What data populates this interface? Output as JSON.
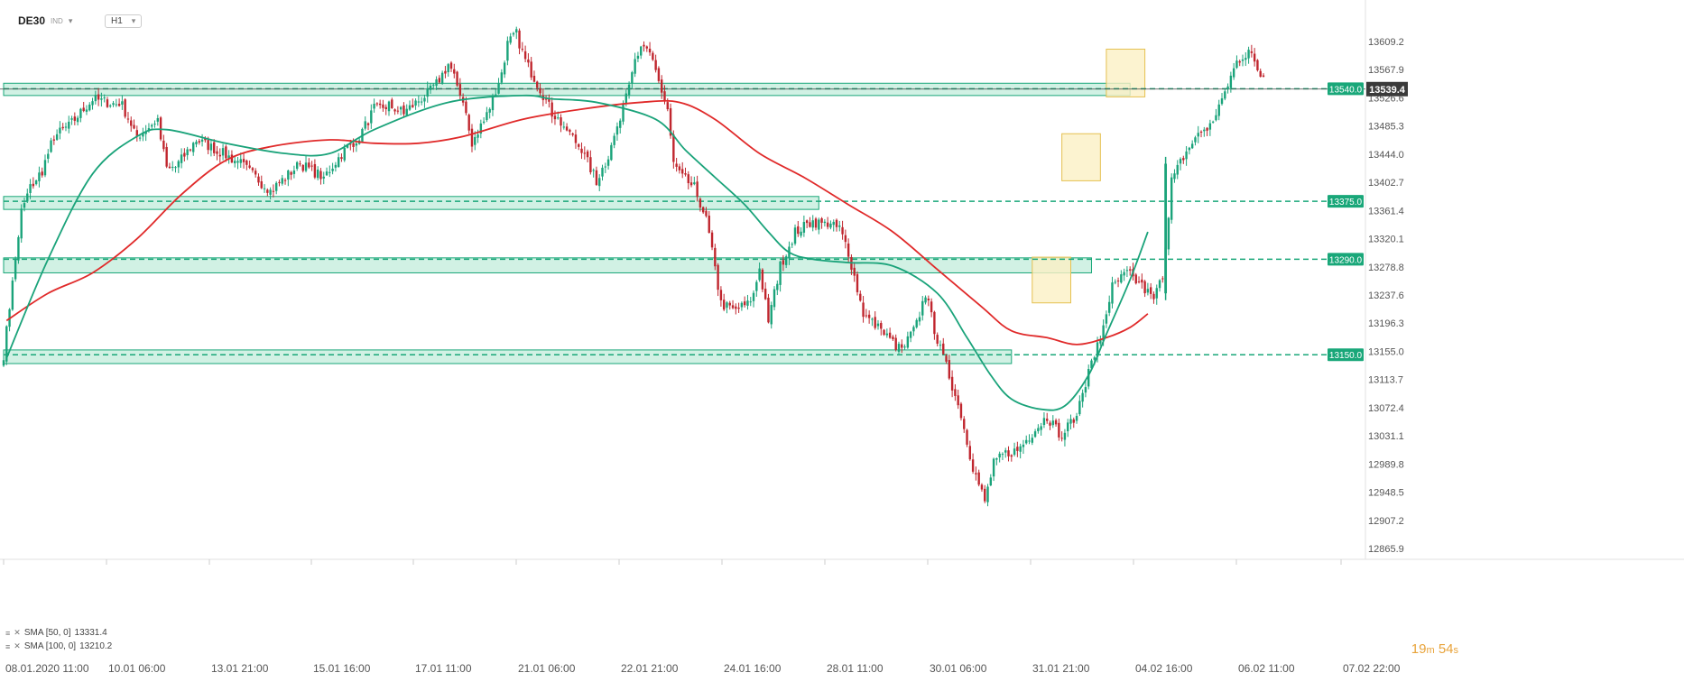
{
  "header": {
    "symbol": "DE30",
    "symbol_sub": "IND",
    "timeframe": "H1"
  },
  "indicators": [
    {
      "label": "SMA [50, 0]",
      "value": "13331.4",
      "color": "#1aa37a"
    },
    {
      "label": "SMA [100, 0]",
      "value": "13210.2",
      "color": "#e02a2a"
    }
  ],
  "timer": {
    "minutes": "19",
    "m_unit": "m",
    "seconds": "54",
    "s_unit": "s"
  },
  "colors": {
    "up": "#1aa37a",
    "down": "#c0262e",
    "zone_fill": "#c9efdf",
    "zone_stroke": "#19a779",
    "box_fill": "#fbf0c4",
    "box_stroke": "#e5c050",
    "sma50": "#1aa37a",
    "sma100": "#e02a2a",
    "price_tag": "#3a3a3a",
    "level_tag": "#19a779"
  },
  "chart_data": {
    "type": "candlestick",
    "instrument": "DE30",
    "timeframe": "H1",
    "y_ticks": [
      13609.2,
      13567.9,
      13526.6,
      13485.3,
      13444.0,
      13402.7,
      13361.4,
      13320.1,
      13278.8,
      13237.6,
      13196.3,
      13155.0,
      13113.7,
      13072.4,
      13031.1,
      12989.8,
      12948.5,
      12907.2,
      12865.9
    ],
    "y_tick_labels": [
      "13609.2",
      "13567.9",
      "13526.6",
      "13485.3",
      "13444.0",
      "13402.7",
      "13361.4",
      "13320.1",
      "13278.8",
      "13237.6",
      "13196.3",
      "13155.0",
      "13113.7",
      "13072.4",
      "13031.1",
      "12989.8",
      "12948.5",
      "12907.2",
      "12865.9"
    ],
    "x_labels": [
      "08.01.2020  11:00",
      "10.01  06:00",
      "13.01  21:00",
      "15.01  16:00",
      "17.01  11:00",
      "21.01  06:00",
      "22.01  21:00",
      "24.01  16:00",
      "28.01  11:00",
      "30.01  06:00",
      "31.01  21:00",
      "04.02  16:00",
      "06.02  11:00",
      "07.02  22:00"
    ],
    "current_price": 13539.4,
    "current_price_label": "13539.4",
    "levels": [
      {
        "value": 13540.0,
        "label": "13540.0"
      },
      {
        "value": 13375.0,
        "label": "13375.0"
      },
      {
        "value": 13290.0,
        "label": "13290.0"
      },
      {
        "value": 13150.0,
        "label": "13150.0"
      }
    ],
    "zones": [
      {
        "bar_start": 0,
        "bar_end": 380,
        "low": 13530,
        "high": 13548
      },
      {
        "bar_start": 0,
        "bar_end": 275,
        "low": 13363,
        "high": 13382
      },
      {
        "bar_start": 0,
        "bar_end": 367,
        "low": 13270,
        "high": 13292
      },
      {
        "bar_start": 0,
        "bar_end": 340,
        "low": 13137,
        "high": 13157
      }
    ],
    "boxes": [
      {
        "bar_start": 347,
        "bar_end": 360,
        "low": 13226,
        "high": 13293
      },
      {
        "bar_start": 357,
        "bar_end": 370,
        "low": 13405,
        "high": 13474
      },
      {
        "bar_start": 372,
        "bar_end": 385,
        "low": 13528,
        "high": 13598
      }
    ],
    "anchors": [
      [
        0,
        13150
      ],
      [
        3,
        13255
      ],
      [
        6,
        13360
      ],
      [
        9,
        13395
      ],
      [
        13,
        13420
      ],
      [
        17,
        13470
      ],
      [
        22,
        13485
      ],
      [
        30,
        13525
      ],
      [
        40,
        13515
      ],
      [
        45,
        13470
      ],
      [
        52,
        13495
      ],
      [
        55,
        13420
      ],
      [
        58,
        13425
      ],
      [
        65,
        13465
      ],
      [
        72,
        13450
      ],
      [
        80,
        13430
      ],
      [
        90,
        13390
      ],
      [
        100,
        13430
      ],
      [
        108,
        13410
      ],
      [
        115,
        13450
      ],
      [
        120,
        13470
      ],
      [
        125,
        13510
      ],
      [
        130,
        13515
      ],
      [
        135,
        13505
      ],
      [
        145,
        13540
      ],
      [
        150,
        13575
      ],
      [
        155,
        13525
      ],
      [
        158,
        13455
      ],
      [
        162,
        13495
      ],
      [
        167,
        13545
      ],
      [
        170,
        13605
      ],
      [
        173,
        13620
      ],
      [
        176,
        13580
      ],
      [
        181,
        13540
      ],
      [
        185,
        13505
      ],
      [
        190,
        13480
      ],
      [
        195,
        13450
      ],
      [
        200,
        13405
      ],
      [
        204,
        13440
      ],
      [
        208,
        13500
      ],
      [
        213,
        13590
      ],
      [
        217,
        13600
      ],
      [
        221,
        13550
      ],
      [
        224,
        13510
      ],
      [
        226,
        13430
      ],
      [
        229,
        13410
      ],
      [
        233,
        13395
      ],
      [
        237,
        13350
      ],
      [
        242,
        13225
      ],
      [
        246,
        13215
      ],
      [
        252,
        13225
      ],
      [
        255,
        13275
      ],
      [
        258,
        13200
      ],
      [
        262,
        13280
      ],
      [
        267,
        13330
      ],
      [
        273,
        13345
      ],
      [
        278,
        13340
      ],
      [
        282,
        13335
      ],
      [
        285,
        13300
      ],
      [
        290,
        13210
      ],
      [
        296,
        13185
      ],
      [
        303,
        13155
      ],
      [
        308,
        13195
      ],
      [
        311,
        13240
      ],
      [
        315,
        13170
      ],
      [
        319,
        13120
      ],
      [
        323,
        13060
      ],
      [
        327,
        12985
      ],
      [
        331,
        12935
      ],
      [
        334,
        12990
      ],
      [
        338,
        13005
      ],
      [
        342,
        13010
      ],
      [
        347,
        13035
      ],
      [
        352,
        13060
      ],
      [
        357,
        13030
      ],
      [
        362,
        13065
      ],
      [
        366,
        13125
      ],
      [
        370,
        13175
      ],
      [
        374,
        13250
      ],
      [
        379,
        13270
      ],
      [
        384,
        13250
      ],
      [
        388,
        13232
      ],
      [
        391,
        13265
      ],
      [
        394,
        13405
      ],
      [
        398,
        13440
      ],
      [
        403,
        13475
      ],
      [
        407,
        13485
      ],
      [
        412,
        13535
      ],
      [
        416,
        13580
      ],
      [
        420,
        13595
      ],
      [
        424,
        13560
      ]
    ],
    "sma50": [
      [
        1,
        13145
      ],
      [
        15,
        13290
      ],
      [
        30,
        13415
      ],
      [
        45,
        13470
      ],
      [
        55,
        13480
      ],
      [
        75,
        13460
      ],
      [
        95,
        13445
      ],
      [
        110,
        13445
      ],
      [
        125,
        13480
      ],
      [
        150,
        13520
      ],
      [
        175,
        13530
      ],
      [
        185,
        13525
      ],
      [
        200,
        13520
      ],
      [
        220,
        13495
      ],
      [
        230,
        13450
      ],
      [
        240,
        13410
      ],
      [
        250,
        13370
      ],
      [
        258,
        13330
      ],
      [
        265,
        13300
      ],
      [
        273,
        13290
      ],
      [
        285,
        13285
      ],
      [
        300,
        13280
      ],
      [
        315,
        13240
      ],
      [
        325,
        13175
      ],
      [
        333,
        13120
      ],
      [
        340,
        13085
      ],
      [
        350,
        13070
      ],
      [
        358,
        13075
      ],
      [
        366,
        13120
      ],
      [
        372,
        13180
      ],
      [
        380,
        13260
      ],
      [
        386,
        13330
      ]
    ],
    "sma100": [
      [
        1,
        13200
      ],
      [
        15,
        13240
      ],
      [
        30,
        13270
      ],
      [
        45,
        13320
      ],
      [
        60,
        13385
      ],
      [
        75,
        13435
      ],
      [
        90,
        13455
      ],
      [
        110,
        13465
      ],
      [
        125,
        13460
      ],
      [
        140,
        13460
      ],
      [
        155,
        13470
      ],
      [
        175,
        13495
      ],
      [
        195,
        13510
      ],
      [
        215,
        13520
      ],
      [
        228,
        13520
      ],
      [
        240,
        13495
      ],
      [
        255,
        13445
      ],
      [
        270,
        13410
      ],
      [
        285,
        13370
      ],
      [
        300,
        13330
      ],
      [
        315,
        13275
      ],
      [
        330,
        13220
      ],
      [
        340,
        13185
      ],
      [
        352,
        13175
      ],
      [
        362,
        13165
      ],
      [
        372,
        13175
      ],
      [
        380,
        13190
      ],
      [
        386,
        13210
      ]
    ]
  }
}
